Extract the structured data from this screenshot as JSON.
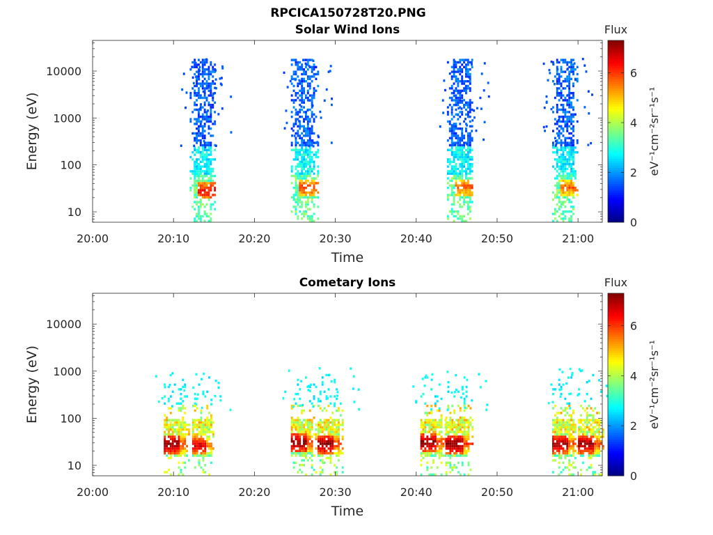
{
  "figure_title": "RPCICA150728T20.PNG",
  "chart_data": [
    {
      "type": "heatmap",
      "title": "Solar Wind Ions",
      "xlabel": "Time",
      "ylabel": "Energy (eV)",
      "yscale": "log",
      "xlim": [
        "20:00",
        "21:03"
      ],
      "ylim": [
        6,
        45000
      ],
      "x_ticks": [
        "20:00",
        "20:10",
        "20:20",
        "20:30",
        "20:40",
        "20:50",
        "21:00"
      ],
      "y_ticks": [
        "10",
        "100",
        "1000",
        "10000"
      ],
      "colorbar": {
        "label": "Flux",
        "units": "eV⁻¹cm⁻²sr⁻¹s⁻¹",
        "range": [
          0,
          7.3
        ],
        "ticks": [
          "0",
          "2",
          "4",
          "6"
        ],
        "colormap": "jet"
      },
      "grid": false,
      "bursts": [
        {
          "start": "20:12.0",
          "end": "20:15.0",
          "core": [
            {
              "energy": 30,
              "flux": 6.0
            }
          ]
        },
        {
          "start": "20:24.5",
          "end": "20:27.8",
          "core": [
            {
              "energy": 35,
              "flux": 5.6
            }
          ]
        },
        {
          "start": "20:43.8",
          "end": "20:47.0",
          "core": [
            {
              "energy": 35,
              "flux": 5.4
            }
          ]
        },
        {
          "start": "20:56.8",
          "end": "20:59.8",
          "core": [
            {
              "energy": 35,
              "flux": 5.3
            }
          ]
        }
      ]
    },
    {
      "type": "heatmap",
      "title": "Cometary Ions",
      "xlabel": "Time",
      "ylabel": "Energy (eV)",
      "yscale": "log",
      "xlim": [
        "20:00",
        "21:03"
      ],
      "ylim": [
        6,
        45000
      ],
      "x_ticks": [
        "20:00",
        "20:10",
        "20:20",
        "20:30",
        "20:40",
        "20:50",
        "21:00"
      ],
      "y_ticks": [
        "10",
        "100",
        "1000",
        "10000"
      ],
      "colorbar": {
        "label": "Flux",
        "units": "eV⁻¹cm⁻²sr⁻¹s⁻¹",
        "range": [
          0,
          7.3
        ],
        "ticks": [
          "0",
          "2",
          "4",
          "6"
        ],
        "colormap": "jet"
      },
      "grid": false,
      "bursts": [
        {
          "start": "20:08.8",
          "end": "20:12.0",
          "core": [
            {
              "energy": 30,
              "flux": 7.0
            }
          ]
        },
        {
          "start": "20:12.3",
          "end": "20:15.0",
          "core": [
            {
              "energy": 28,
              "flux": 6.5
            }
          ]
        },
        {
          "start": "20:24.5",
          "end": "20:27.6",
          "core": [
            {
              "energy": 32,
              "flux": 7.0
            }
          ]
        },
        {
          "start": "20:27.8",
          "end": "20:31.0",
          "core": [
            {
              "energy": 30,
              "flux": 7.0
            }
          ]
        },
        {
          "start": "20:40.5",
          "end": "20:43.5",
          "core": [
            {
              "energy": 32,
              "flux": 7.0
            }
          ]
        },
        {
          "start": "20:43.6",
          "end": "20:47.0",
          "core": [
            {
              "energy": 30,
              "flux": 7.0
            }
          ]
        },
        {
          "start": "20:56.8",
          "end": "20:59.8",
          "core": [
            {
              "energy": 30,
              "flux": 6.9
            }
          ]
        },
        {
          "start": "21:00.0",
          "end": "21:03.0",
          "core": [
            {
              "energy": 30,
              "flux": 6.9
            }
          ]
        }
      ]
    }
  ]
}
